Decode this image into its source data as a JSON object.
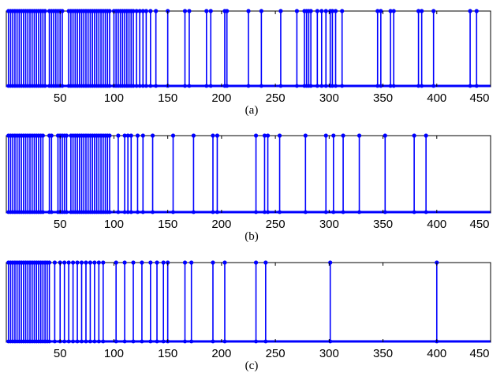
{
  "figure": {
    "stem_color": "#0000ff",
    "axes_color": "#000000",
    "background": "#ffffff"
  },
  "chart_data": [
    {
      "type": "stem",
      "caption": "(a)",
      "xlim": [
        0,
        450
      ],
      "ylim": [
        0,
        1
      ],
      "xticks": [
        50,
        100,
        150,
        200,
        250,
        300,
        350,
        400,
        450
      ],
      "x_values": [
        2,
        4,
        6,
        8,
        10,
        12,
        14,
        16,
        18,
        20,
        22,
        24,
        26,
        28,
        30,
        32,
        34,
        36,
        40,
        42,
        44,
        46,
        48,
        50,
        52,
        58,
        60,
        62,
        64,
        66,
        68,
        70,
        72,
        74,
        76,
        78,
        80,
        82,
        84,
        86,
        88,
        90,
        92,
        94,
        96,
        100,
        102,
        104,
        106,
        108,
        110,
        112,
        114,
        116,
        118,
        121,
        124,
        127,
        130,
        134,
        139,
        150,
        166,
        170,
        186,
        190,
        203,
        205,
        225,
        237,
        255,
        270,
        277,
        279,
        281,
        283,
        289,
        293,
        297,
        301,
        303,
        306,
        312,
        345,
        348,
        357,
        360,
        383,
        386,
        397,
        431,
        437
      ]
    },
    {
      "type": "stem",
      "caption": "(b)",
      "xlim": [
        0,
        450
      ],
      "ylim": [
        0,
        1
      ],
      "xticks": [
        50,
        100,
        150,
        200,
        250,
        300,
        350,
        400,
        450
      ],
      "x_values": [
        2,
        4,
        6,
        8,
        10,
        12,
        14,
        16,
        18,
        20,
        22,
        24,
        26,
        28,
        30,
        32,
        34,
        40,
        42,
        48,
        50,
        52,
        54,
        56,
        60,
        62,
        64,
        66,
        68,
        70,
        72,
        74,
        76,
        78,
        80,
        82,
        84,
        86,
        88,
        90,
        92,
        94,
        96,
        104,
        110,
        113,
        116,
        122,
        127,
        136,
        155,
        174,
        192,
        196,
        232,
        240,
        243,
        254,
        278,
        297,
        304,
        313,
        328,
        352,
        379,
        390
      ]
    },
    {
      "type": "stem",
      "caption": "(c)",
      "xlim": [
        0,
        450
      ],
      "ylim": [
        0,
        1
      ],
      "xticks": [
        50,
        100,
        150,
        200,
        250,
        300,
        350,
        400,
        450
      ],
      "x_values": [
        2,
        4,
        6,
        8,
        10,
        12,
        14,
        16,
        18,
        20,
        22,
        24,
        26,
        28,
        30,
        32,
        34,
        36,
        38,
        40,
        45,
        50,
        54,
        58,
        62,
        66,
        70,
        74,
        78,
        82,
        86,
        90,
        102,
        110,
        118,
        126,
        134,
        140,
        146,
        150,
        166,
        172,
        192,
        203,
        232,
        241,
        301,
        400
      ]
    }
  ]
}
